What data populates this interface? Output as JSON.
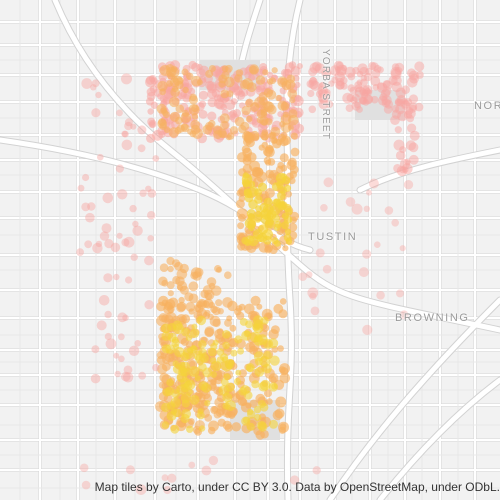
{
  "map": {
    "labels": {
      "tustin": "TUSTIN",
      "browning": "BROWNING",
      "nor": "NOR",
      "yorba": "YORBA STREET"
    },
    "attribution": "Map tiles by Carto, under CC BY 3.0. Data by OpenStreetMap, under ODbL.",
    "colors": {
      "background": "#f2f2f2",
      "road": "#ffffff",
      "road_outline": "#d9d9d9",
      "heat_low": "#f7a6a1",
      "heat_mid": "#f7b060",
      "heat_high": "#f5d33a"
    }
  }
}
